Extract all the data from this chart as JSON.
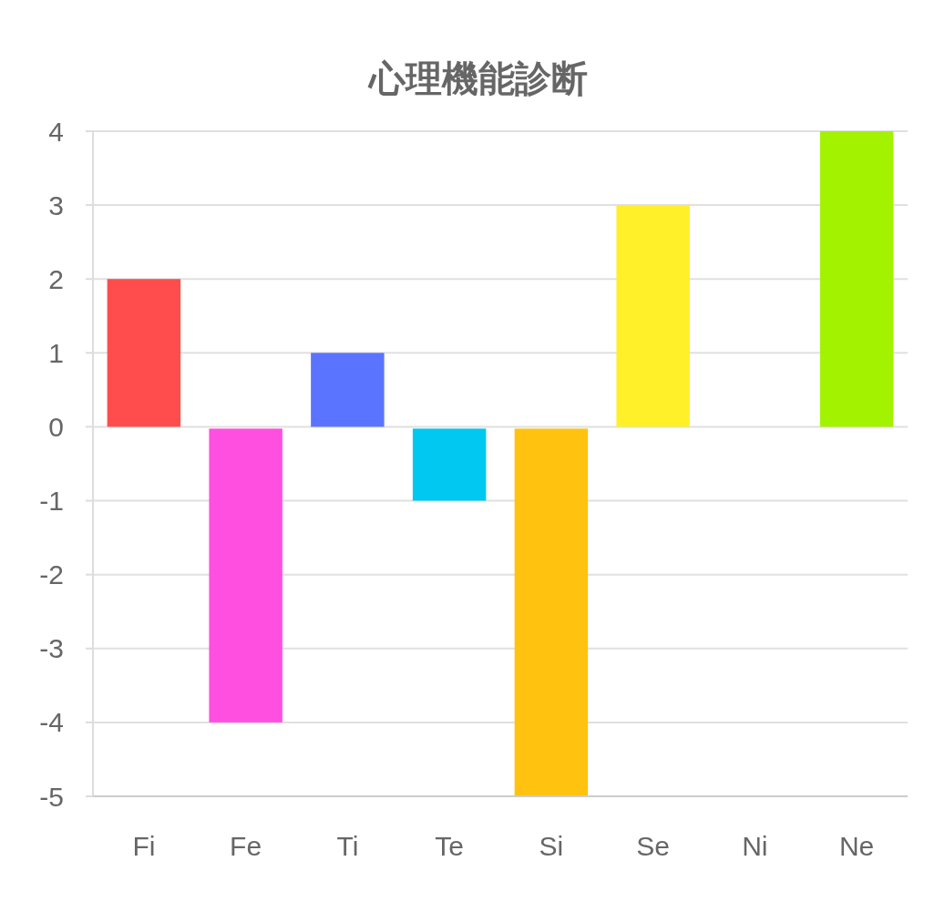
{
  "chart_data": {
    "type": "bar",
    "title": "心理機能診断",
    "categories": [
      "Fi",
      "Fe",
      "Ti",
      "Te",
      "Si",
      "Se",
      "Ni",
      "Ne"
    ],
    "values": [
      2,
      -4,
      1,
      -1,
      -5,
      3,
      0,
      4
    ],
    "colors": [
      "#ff4d4d",
      "#ff4fe0",
      "#5a74ff",
      "#00c8f0",
      "#ffc20e",
      "#fff02a",
      "#9e9e9e",
      "#a3f200"
    ],
    "ylim": [
      -5,
      4
    ],
    "yticks": [
      -5,
      -4,
      -3,
      -2,
      -1,
      0,
      1,
      2,
      3,
      4
    ],
    "grid": "y"
  }
}
